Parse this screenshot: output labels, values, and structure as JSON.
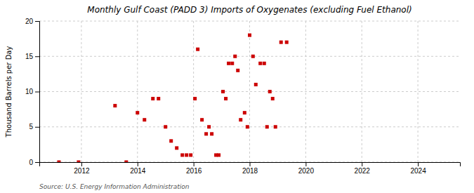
{
  "chart_data": {
    "type": "scatter",
    "title": "Monthly Gulf Coast (PADD 3) Imports of Oxygenates (excluding Fuel Ethanol)",
    "ylabel": "Thousand Barrels per Day",
    "annotations": [
      "Source: U.S. Energy Information Administration"
    ],
    "x": [
      2011.2,
      2011.9,
      2013.2,
      2013.6,
      2014.0,
      2014.25,
      2014.55,
      2014.75,
      2015.0,
      2015.2,
      2015.4,
      2015.6,
      2015.75,
      2015.9,
      2016.05,
      2016.15,
      2016.3,
      2016.45,
      2016.55,
      2016.65,
      2016.8,
      2016.9,
      2017.05,
      2017.15,
      2017.25,
      2017.38,
      2017.48,
      2017.58,
      2017.68,
      2017.82,
      2017.92,
      2018.0,
      2018.12,
      2018.22,
      2018.38,
      2018.52,
      2018.62,
      2018.72,
      2018.82,
      2018.92,
      2019.12,
      2019.32
    ],
    "values": [
      0,
      0,
      8,
      0,
      7,
      6,
      9,
      9,
      5,
      3,
      2,
      1,
      1,
      1,
      9,
      16,
      6,
      4,
      5,
      4,
      1,
      1,
      10,
      9,
      14,
      14,
      15,
      13,
      6,
      7,
      5,
      18,
      15,
      11,
      14,
      14,
      5,
      10,
      9,
      5,
      17,
      17
    ],
    "color": "#cc0000",
    "marker": "square",
    "xlim": [
      2010.5,
      2025.5
    ],
    "ylim": [
      0,
      20
    ],
    "xticks": [
      2012,
      2014,
      2016,
      2018,
      2020,
      2022,
      2024
    ],
    "yticks": [
      0,
      5,
      10,
      15,
      20
    ],
    "grid": true
  }
}
